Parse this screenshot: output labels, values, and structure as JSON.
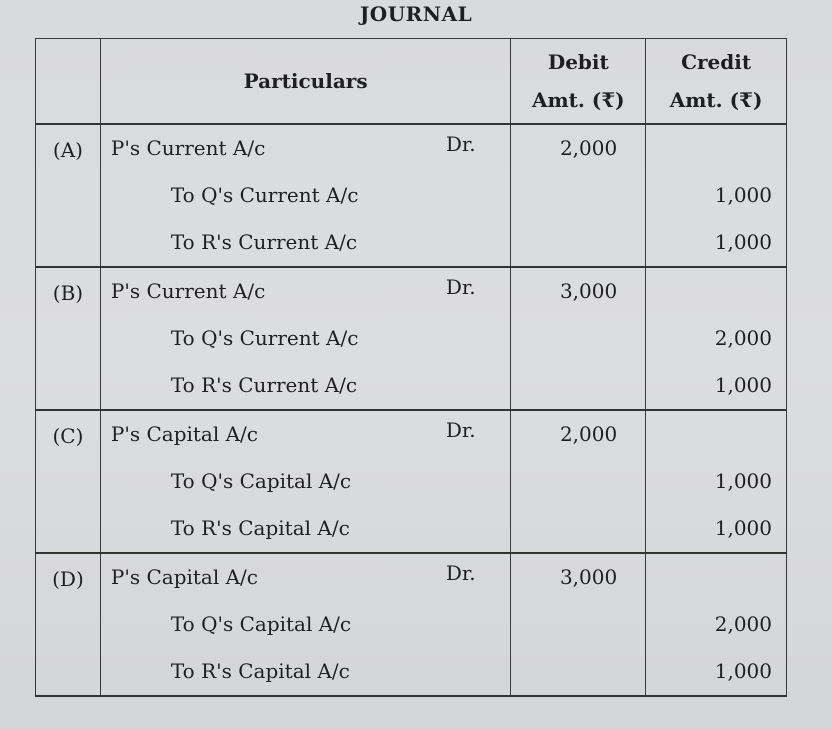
{
  "title": "JOURNAL",
  "headers": {
    "particulars": "Particulars",
    "debit": "Debit",
    "debit_unit": "Amt. (₹)",
    "credit": "Credit",
    "credit_unit": "Amt. (₹)"
  },
  "entries": [
    {
      "label": "(A)",
      "debit_account": "P's Current A/c",
      "dr": "Dr.",
      "debit_amount": "2,000",
      "credits": [
        {
          "account": "To Q's Current A/c",
          "amount": "1,000"
        },
        {
          "account": "To R's Current A/c",
          "amount": "1,000"
        }
      ]
    },
    {
      "label": "(B)",
      "debit_account": "P's Current A/c",
      "dr": "Dr.",
      "debit_amount": "3,000",
      "credits": [
        {
          "account": "To Q's Current A/c",
          "amount": "2,000"
        },
        {
          "account": "To R's Current A/c",
          "amount": "1,000"
        }
      ]
    },
    {
      "label": "(C)",
      "debit_account": "P's Capital A/c",
      "dr": "Dr.",
      "debit_amount": "2,000",
      "credits": [
        {
          "account": "To Q's Capital A/c",
          "amount": "1,000"
        },
        {
          "account": "To R's Capital A/c",
          "amount": "1,000"
        }
      ]
    },
    {
      "label": "(D)",
      "debit_account": "P's Capital A/c",
      "dr": "Dr.",
      "debit_amount": "3,000",
      "credits": [
        {
          "account": "To Q's Capital A/c",
          "amount": "2,000"
        },
        {
          "account": "To R's Capital A/c",
          "amount": "1,000"
        }
      ]
    }
  ]
}
